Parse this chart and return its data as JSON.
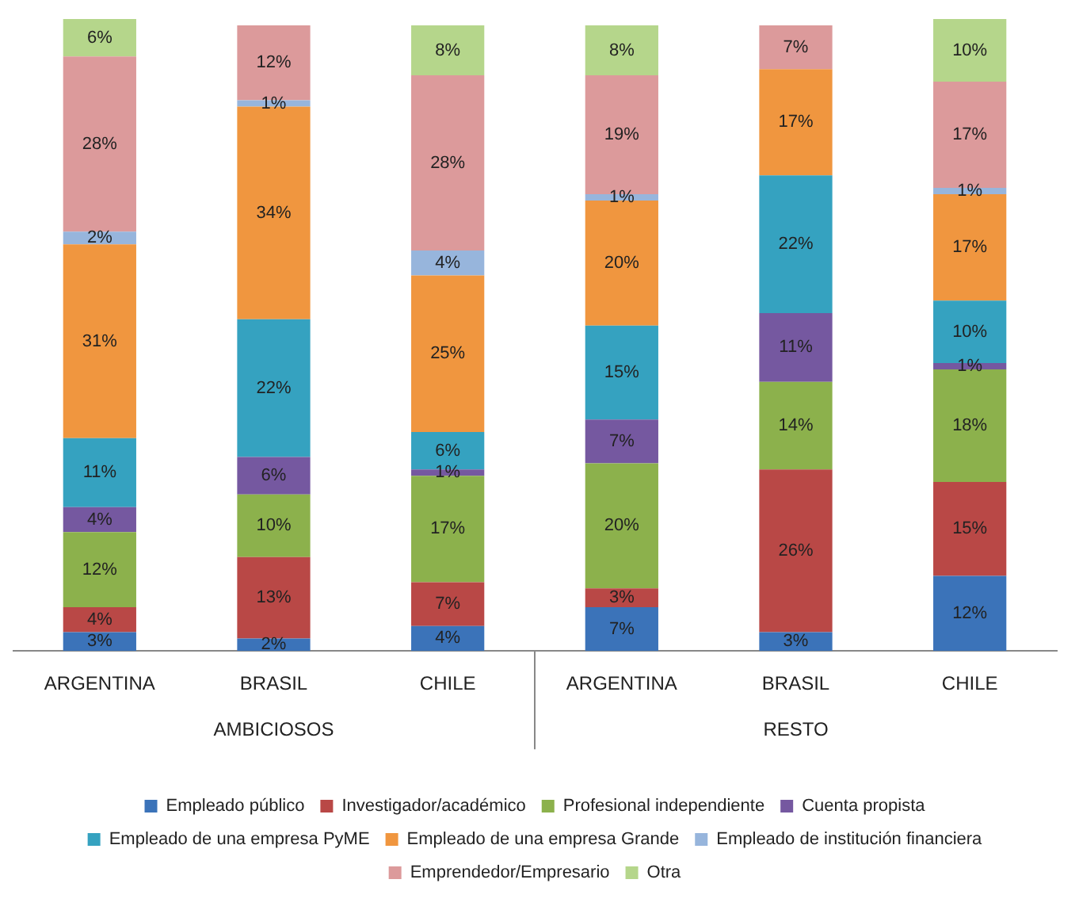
{
  "chart_data": {
    "type": "bar",
    "stacked": true,
    "categories": [
      "ARGENTINA",
      "BRASIL",
      "CHILE",
      "ARGENTINA",
      "BRASIL",
      "CHILE"
    ],
    "annotations": [
      "AMBICIOSOS",
      "RESTO"
    ],
    "ylim": [
      0,
      101
    ],
    "tick_labels": "x",
    "grid": false,
    "legend": "bottom",
    "series": [
      {
        "name": "Empleado público",
        "color": "#3b73b9",
        "values": [
          3,
          2,
          4,
          7,
          3,
          12
        ],
        "value_labels": [
          "3%",
          "2%",
          "4%",
          "7%",
          "3%",
          "12%"
        ]
      },
      {
        "name": "Investigador/académico",
        "color": "#b94846",
        "values": [
          4,
          13,
          7,
          3,
          26,
          15
        ],
        "value_labels": [
          "4%",
          "13%",
          "7%",
          "3%",
          "26%",
          "15%"
        ]
      },
      {
        "name": "Profesional independiente",
        "color": "#8cb14c",
        "values": [
          12,
          10,
          17,
          20,
          14,
          18
        ],
        "value_labels": [
          "12%",
          "10%",
          "17%",
          "20%",
          "14%",
          "18%"
        ]
      },
      {
        "name": "Cuenta propista",
        "color": "#7558a0",
        "values": [
          4,
          6,
          1,
          7,
          11,
          1
        ],
        "value_labels": [
          "4%",
          "6%",
          "1%",
          "7%",
          "11%",
          "1%"
        ]
      },
      {
        "name": "Empleado de una empresa PyME",
        "color": "#35a2c0",
        "values": [
          11,
          22,
          6,
          15,
          22,
          10
        ],
        "value_labels": [
          "11%",
          "22%",
          "6%",
          "15%",
          "22%",
          "10%"
        ]
      },
      {
        "name": "Empleado de una empresa Grande",
        "color": "#f0963f",
        "values": [
          31,
          34,
          25,
          20,
          17,
          17
        ],
        "value_labels": [
          "31%",
          "34%",
          "25%",
          "20%",
          "17%",
          "17%"
        ]
      },
      {
        "name": "Empleado de institución financiera",
        "color": "#97b5dc",
        "values": [
          2,
          1,
          4,
          1,
          null,
          1
        ],
        "value_labels": [
          "2%",
          "1%",
          "4%",
          "1%",
          null,
          "1%"
        ]
      },
      {
        "name": "Emprendedor/Empresario",
        "color": "#dc9a9b",
        "values": [
          28,
          12,
          28,
          19,
          7,
          17
        ],
        "value_labels": [
          "28%",
          "12%",
          "28%",
          "19%",
          "7%",
          "17%"
        ]
      },
      {
        "name": "Otra",
        "color": "#b5d68b",
        "values": [
          6,
          null,
          8,
          8,
          null,
          10
        ],
        "value_labels": [
          "6%",
          null,
          "8%",
          "8%",
          null,
          "10%"
        ]
      }
    ]
  }
}
